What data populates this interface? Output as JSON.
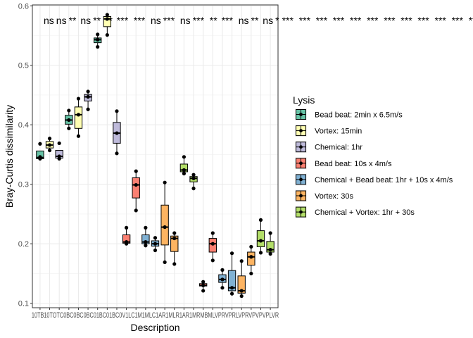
{
  "chart_data": {
    "type": "box",
    "xlabel": "Description",
    "ylabel": "Bray-Curtis dissimilarity",
    "ylim": [
      0.1,
      0.6
    ],
    "yticks": [
      0.1,
      0.2,
      0.3,
      0.4,
      0.5,
      0.6
    ],
    "ytick_labels": [
      "0.1",
      "0.2",
      "0.3",
      "0.4",
      "0.5",
      "0.6"
    ],
    "x_tick_label_run": "10TB10TOTC0BC0BC0BC01BC01BC0V1LC1M1MLC1AR1MLR1AR1MRMBMLVPRVPRLVPRVPVPVPLVR",
    "significance_labels": [
      "ns",
      "ns",
      "**",
      "ns",
      "**",
      "**",
      "***",
      "***",
      "ns",
      "***",
      "ns",
      "***",
      "**",
      "***",
      "ns",
      "**",
      "ns",
      "*",
      "***",
      "***",
      "***",
      "***",
      "***",
      "***",
      "***",
      "***",
      "***",
      "***",
      "***",
      "***",
      "***",
      "***"
    ],
    "legend": {
      "title": "Lysis",
      "entries": [
        {
          "label": "Bead beat: 2min x 6.5m/s",
          "color": "#66C2A5"
        },
        {
          "label": "Vortex: 15min",
          "color": "#FFFFB3"
        },
        {
          "label": "Chemical: 1hr",
          "color": "#BEBADA"
        },
        {
          "label": "Bead beat: 10s x 4m/s",
          "color": "#FB8072"
        },
        {
          "label": "Chemical + Bead beat: 1hr + 10s x 4m/s",
          "color": "#80B1D3"
        },
        {
          "label": "Vortex: 30s",
          "color": "#FDB462"
        },
        {
          "label": "Chemical + Vortex: 1hr + 30s",
          "color": "#B3DE69"
        }
      ]
    },
    "boxes": [
      {
        "x": 1,
        "group": 0,
        "q1": 0.343,
        "median": 0.345,
        "q3": 0.356,
        "wlo": 0.343,
        "whi": 0.356,
        "points": [
          0.343,
          0.346,
          0.368
        ]
      },
      {
        "x": 2,
        "group": 1,
        "q1": 0.361,
        "median": 0.366,
        "q3": 0.372,
        "wlo": 0.356,
        "whi": 0.377,
        "points": [
          0.357,
          0.366,
          0.377
        ]
      },
      {
        "x": 3,
        "group": 2,
        "q1": 0.344,
        "median": 0.347,
        "q3": 0.357,
        "wlo": 0.343,
        "whi": 0.357,
        "points": [
          0.343,
          0.347,
          0.369
        ]
      },
      {
        "x": 4,
        "group": 0,
        "q1": 0.401,
        "median": 0.408,
        "q3": 0.416,
        "wlo": 0.394,
        "whi": 0.424,
        "points": [
          0.394,
          0.408,
          0.424
        ]
      },
      {
        "x": 5,
        "group": 1,
        "q1": 0.394,
        "median": 0.417,
        "q3": 0.43,
        "wlo": 0.381,
        "whi": 0.444,
        "points": [
          0.381,
          0.417,
          0.444
        ]
      },
      {
        "x": 6,
        "group": 2,
        "q1": 0.44,
        "median": 0.447,
        "q3": 0.451,
        "wlo": 0.426,
        "whi": 0.456,
        "points": [
          0.426,
          0.447,
          0.456
        ]
      },
      {
        "x": 7,
        "group": 0,
        "q1": 0.538,
        "median": 0.543,
        "q3": 0.546,
        "wlo": 0.531,
        "whi": 0.552,
        "points": [
          0.531,
          0.543,
          0.552
        ]
      },
      {
        "x": 8,
        "group": 1,
        "q1": 0.565,
        "median": 0.578,
        "q3": 0.582,
        "wlo": 0.551,
        "whi": 0.585,
        "points": [
          0.551,
          0.578,
          0.585
        ]
      },
      {
        "x": 9,
        "group": 2,
        "q1": 0.369,
        "median": 0.386,
        "q3": 0.404,
        "wlo": 0.352,
        "whi": 0.423,
        "points": [
          0.352,
          0.386,
          0.423
        ]
      },
      {
        "x": 10,
        "group": 3,
        "q1": 0.201,
        "median": 0.203,
        "q3": 0.215,
        "wlo": 0.2,
        "whi": 0.227,
        "points": [
          0.2,
          0.203,
          0.227
        ]
      },
      {
        "x": 11,
        "group": 3,
        "q1": 0.277,
        "median": 0.299,
        "q3": 0.311,
        "wlo": 0.256,
        "whi": 0.322,
        "points": [
          0.256,
          0.299,
          0.322
        ]
      },
      {
        "x": 12,
        "group": 4,
        "q1": 0.2,
        "median": 0.203,
        "q3": 0.215,
        "wlo": 0.197,
        "whi": 0.227,
        "points": [
          0.197,
          0.203,
          0.227
        ]
      },
      {
        "x": 13,
        "group": 4,
        "q1": 0.196,
        "median": 0.2,
        "q3": 0.205,
        "wlo": 0.189,
        "whi": 0.21,
        "points": [
          0.189,
          0.2,
          0.21
        ]
      },
      {
        "x": 14,
        "group": 5,
        "q1": 0.198,
        "median": 0.228,
        "q3": 0.265,
        "wlo": 0.169,
        "whi": 0.303,
        "points": [
          0.169,
          0.228,
          0.303
        ]
      },
      {
        "x": 15,
        "group": 5,
        "q1": 0.187,
        "median": 0.209,
        "q3": 0.213,
        "wlo": 0.166,
        "whi": 0.218,
        "points": [
          0.166,
          0.209,
          0.218
        ]
      },
      {
        "x": 16,
        "group": 6,
        "q1": 0.321,
        "median": 0.324,
        "q3": 0.334,
        "wlo": 0.318,
        "whi": 0.346,
        "points": [
          0.318,
          0.324,
          0.346
        ]
      },
      {
        "x": 17,
        "group": 6,
        "q1": 0.304,
        "median": 0.31,
        "q3": 0.313,
        "wlo": 0.293,
        "whi": 0.316,
        "points": [
          0.293,
          0.31,
          0.316
        ]
      },
      {
        "x": 18,
        "group": 3,
        "q1": 0.129,
        "median": 0.13,
        "q3": 0.133,
        "wlo": 0.121,
        "whi": 0.136,
        "points": [
          0.121,
          0.13,
          0.136
        ]
      },
      {
        "x": 19,
        "group": 3,
        "q1": 0.186,
        "median": 0.2,
        "q3": 0.209,
        "wlo": 0.172,
        "whi": 0.218,
        "points": [
          0.172,
          0.2,
          0.218
        ]
      },
      {
        "x": 20,
        "group": 4,
        "q1": 0.135,
        "median": 0.14,
        "q3": 0.148,
        "wlo": 0.126,
        "whi": 0.156,
        "points": [
          0.126,
          0.14,
          0.156
        ]
      },
      {
        "x": 21,
        "group": 4,
        "q1": 0.121,
        "median": 0.126,
        "q3": 0.155,
        "wlo": 0.116,
        "whi": 0.184,
        "points": [
          0.116,
          0.126,
          0.184
        ]
      },
      {
        "x": 22,
        "group": 5,
        "q1": 0.117,
        "median": 0.121,
        "q3": 0.146,
        "wlo": 0.112,
        "whi": 0.171,
        "points": [
          0.112,
          0.121,
          0.171
        ]
      },
      {
        "x": 23,
        "group": 5,
        "q1": 0.164,
        "median": 0.178,
        "q3": 0.186,
        "wlo": 0.15,
        "whi": 0.195,
        "points": [
          0.15,
          0.178,
          0.195
        ]
      },
      {
        "x": 24,
        "group": 6,
        "q1": 0.195,
        "median": 0.205,
        "q3": 0.222,
        "wlo": 0.185,
        "whi": 0.24,
        "points": [
          0.185,
          0.205,
          0.24
        ]
      },
      {
        "x": 25,
        "group": 6,
        "q1": 0.186,
        "median": 0.19,
        "q3": 0.204,
        "wlo": 0.183,
        "whi": 0.218,
        "points": [
          0.183,
          0.19,
          0.218
        ]
      }
    ]
  }
}
